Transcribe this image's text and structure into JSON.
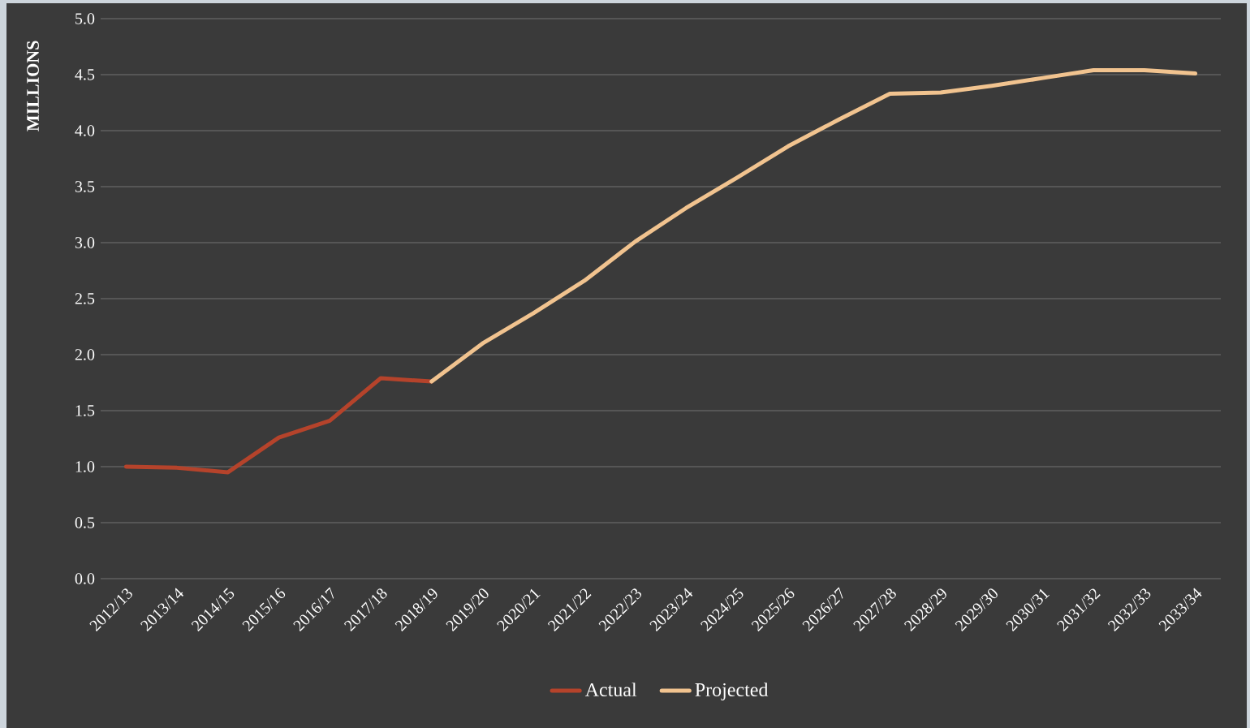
{
  "chart_data": {
    "type": "line",
    "ylabel": "MILLIONS",
    "categories": [
      "2012/13",
      "2013/14",
      "2014/15",
      "2015/16",
      "2016/17",
      "2017/18",
      "2018/19",
      "2019/20",
      "2020/21",
      "2021/22",
      "2022/23",
      "2023/24",
      "2024/25",
      "2025/26",
      "2026/27",
      "2027/28",
      "2028/29",
      "2029/30",
      "2030/31",
      "2031/32",
      "2032/33",
      "2033/34"
    ],
    "series": [
      {
        "name": "Actual",
        "color": "#b5432b",
        "values": [
          1.0,
          0.99,
          0.95,
          1.26,
          1.41,
          1.79,
          1.76,
          null,
          null,
          null,
          null,
          null,
          null,
          null,
          null,
          null,
          null,
          null,
          null,
          null,
          null,
          null
        ]
      },
      {
        "name": "Projected",
        "color": "#f1c38f",
        "values": [
          null,
          null,
          null,
          null,
          null,
          null,
          1.76,
          2.1,
          2.37,
          2.66,
          3.01,
          3.31,
          3.58,
          3.86,
          4.1,
          4.33,
          4.34,
          4.4,
          4.47,
          4.54,
          4.54,
          4.51
        ]
      }
    ],
    "ylim": [
      0,
      5
    ],
    "yticks": [
      {
        "value": 0,
        "label": "0.0"
      },
      {
        "value": 0.5,
        "label": "0.5"
      },
      {
        "value": 1,
        "label": "1.0"
      },
      {
        "value": 1.5,
        "label": "1.5"
      },
      {
        "value": 2,
        "label": "2.0"
      },
      {
        "value": 2.5,
        "label": "2.5"
      },
      {
        "value": 3,
        "label": "3.0"
      },
      {
        "value": 3.5,
        "label": "3.5"
      },
      {
        "value": 4,
        "label": "4.0"
      },
      {
        "value": 4.5,
        "label": "4.5"
      },
      {
        "value": 5,
        "label": "5.0"
      }
    ],
    "grid": "y",
    "legend": "bottom",
    "marker": "none",
    "line_style": "solid"
  }
}
